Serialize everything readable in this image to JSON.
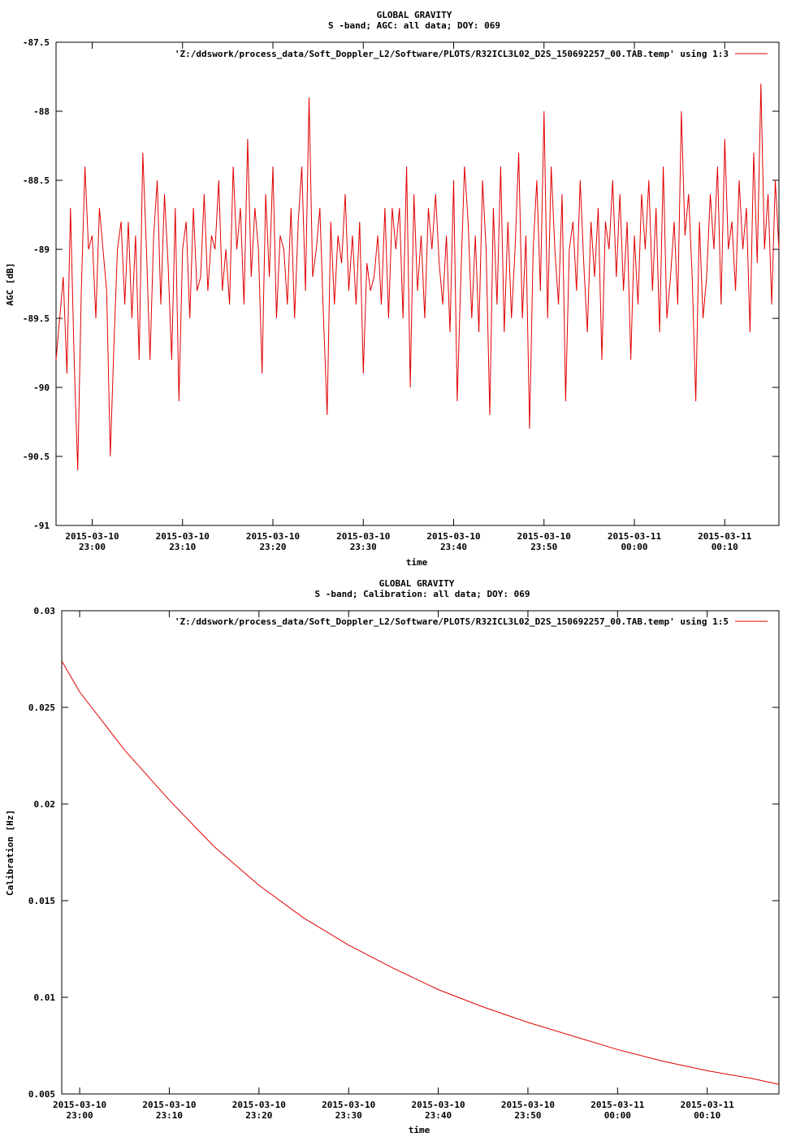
{
  "colors": {
    "series": "#e00000",
    "axis": "#000000",
    "background": "#ffffff"
  },
  "chart_data": [
    {
      "type": "line",
      "title": "GLOBAL GRAVITY",
      "subtitle": "S -band; AGC: all data; DOY: 069",
      "xlabel": "time",
      "ylabel": "AGC [dB]",
      "ylim": [
        -91,
        -87.5
      ],
      "yticks": [
        -87.5,
        -88,
        -88.5,
        -89,
        -89.5,
        -90,
        -90.5,
        -91
      ],
      "ytick_labels": [
        "-87.5",
        "-88",
        "-88.5",
        "-89",
        "-89.5",
        "-90",
        "-90.5",
        "-91"
      ],
      "xlim_minutes": [
        -4,
        76
      ],
      "xticks_minutes": [
        0,
        10,
        20,
        30,
        40,
        50,
        60,
        70
      ],
      "xtick_labels": [
        [
          "2015-03-10",
          "23:00"
        ],
        [
          "2015-03-10",
          "23:10"
        ],
        [
          "2015-03-10",
          "23:20"
        ],
        [
          "2015-03-10",
          "23:30"
        ],
        [
          "2015-03-10",
          "23:40"
        ],
        [
          "2015-03-10",
          "23:50"
        ],
        [
          "2015-03-11",
          "00:00"
        ],
        [
          "2015-03-11",
          "00:10"
        ]
      ],
      "grid": false,
      "legend_position": "top-right",
      "series": [
        {
          "name": "'Z:/ddswork/process_data/Soft_Doppler_L2/Software/PLOTS/R32ICL3L02_D2S_150692257_00.TAB.temp' using 1:3",
          "points": [
            [
              -4.0,
              -89.8
            ],
            [
              -3.6,
              -89.5
            ],
            [
              -3.2,
              -89.2
            ],
            [
              -2.8,
              -89.9
            ],
            [
              -2.4,
              -88.7
            ],
            [
              -2.0,
              -89.8
            ],
            [
              -1.6,
              -90.6
            ],
            [
              -1.2,
              -89.3
            ],
            [
              -0.8,
              -88.4
            ],
            [
              -0.4,
              -89.0
            ],
            [
              0.0,
              -88.9
            ],
            [
              0.4,
              -89.5
            ],
            [
              0.8,
              -88.7
            ],
            [
              1.2,
              -89.0
            ],
            [
              1.6,
              -89.3
            ],
            [
              2.0,
              -90.5
            ],
            [
              2.4,
              -89.7
            ],
            [
              2.8,
              -89.0
            ],
            [
              3.2,
              -88.8
            ],
            [
              3.6,
              -89.4
            ],
            [
              4.0,
              -88.8
            ],
            [
              4.4,
              -89.5
            ],
            [
              4.8,
              -88.9
            ],
            [
              5.2,
              -89.8
            ],
            [
              5.6,
              -88.3
            ],
            [
              6.0,
              -89.0
            ],
            [
              6.4,
              -89.8
            ],
            [
              6.8,
              -88.9
            ],
            [
              7.2,
              -88.5
            ],
            [
              7.6,
              -89.4
            ],
            [
              8.0,
              -88.6
            ],
            [
              8.4,
              -89.1
            ],
            [
              8.8,
              -89.8
            ],
            [
              9.2,
              -88.7
            ],
            [
              9.6,
              -90.1
            ],
            [
              10.0,
              -89.0
            ],
            [
              10.4,
              -88.8
            ],
            [
              10.8,
              -89.5
            ],
            [
              11.2,
              -88.7
            ],
            [
              11.6,
              -89.3
            ],
            [
              12.0,
              -89.2
            ],
            [
              12.4,
              -88.6
            ],
            [
              12.8,
              -89.3
            ],
            [
              13.2,
              -88.9
            ],
            [
              13.6,
              -89.0
            ],
            [
              14.0,
              -88.5
            ],
            [
              14.4,
              -89.3
            ],
            [
              14.8,
              -89.0
            ],
            [
              15.2,
              -89.4
            ],
            [
              15.6,
              -88.4
            ],
            [
              16.0,
              -89.0
            ],
            [
              16.4,
              -88.7
            ],
            [
              16.8,
              -89.4
            ],
            [
              17.2,
              -88.2
            ],
            [
              17.6,
              -89.2
            ],
            [
              18.0,
              -88.7
            ],
            [
              18.4,
              -89.0
            ],
            [
              18.8,
              -89.9
            ],
            [
              19.2,
              -88.6
            ],
            [
              19.6,
              -89.2
            ],
            [
              20.0,
              -88.4
            ],
            [
              20.4,
              -89.5
            ],
            [
              20.8,
              -88.9
            ],
            [
              21.2,
              -89.0
            ],
            [
              21.6,
              -89.4
            ],
            [
              22.0,
              -88.7
            ],
            [
              22.4,
              -89.5
            ],
            [
              22.8,
              -88.8
            ],
            [
              23.2,
              -88.4
            ],
            [
              23.6,
              -89.3
            ],
            [
              24.0,
              -87.9
            ],
            [
              24.4,
              -89.2
            ],
            [
              24.8,
              -89.0
            ],
            [
              25.2,
              -88.7
            ],
            [
              25.6,
              -89.5
            ],
            [
              26.0,
              -90.2
            ],
            [
              26.4,
              -88.8
            ],
            [
              26.8,
              -89.4
            ],
            [
              27.2,
              -88.9
            ],
            [
              27.6,
              -89.1
            ],
            [
              28.0,
              -88.6
            ],
            [
              28.4,
              -89.3
            ],
            [
              28.8,
              -88.9
            ],
            [
              29.2,
              -89.4
            ],
            [
              29.6,
              -88.8
            ],
            [
              30.0,
              -89.9
            ],
            [
              30.4,
              -89.1
            ],
            [
              30.8,
              -89.3
            ],
            [
              31.2,
              -89.2
            ],
            [
              31.6,
              -88.9
            ],
            [
              32.0,
              -89.4
            ],
            [
              32.4,
              -88.7
            ],
            [
              32.8,
              -89.5
            ],
            [
              33.2,
              -88.7
            ],
            [
              33.6,
              -89.0
            ],
            [
              34.0,
              -88.7
            ],
            [
              34.4,
              -89.5
            ],
            [
              34.8,
              -88.4
            ],
            [
              35.2,
              -90.0
            ],
            [
              35.6,
              -88.6
            ],
            [
              36.0,
              -89.3
            ],
            [
              36.4,
              -88.9
            ],
            [
              36.8,
              -89.5
            ],
            [
              37.2,
              -88.7
            ],
            [
              37.6,
              -89.0
            ],
            [
              38.0,
              -88.6
            ],
            [
              38.4,
              -89.1
            ],
            [
              38.8,
              -89.4
            ],
            [
              39.2,
              -88.9
            ],
            [
              39.6,
              -89.6
            ],
            [
              40.0,
              -88.5
            ],
            [
              40.4,
              -90.1
            ],
            [
              40.8,
              -89.2
            ],
            [
              41.2,
              -88.4
            ],
            [
              41.6,
              -88.8
            ],
            [
              42.0,
              -89.5
            ],
            [
              42.4,
              -88.9
            ],
            [
              42.8,
              -89.6
            ],
            [
              43.2,
              -88.5
            ],
            [
              43.6,
              -89.0
            ],
            [
              44.0,
              -90.2
            ],
            [
              44.4,
              -88.7
            ],
            [
              44.8,
              -89.4
            ],
            [
              45.2,
              -88.4
            ],
            [
              45.6,
              -89.6
            ],
            [
              46.0,
              -88.8
            ],
            [
              46.4,
              -89.5
            ],
            [
              46.8,
              -89.0
            ],
            [
              47.2,
              -88.3
            ],
            [
              47.6,
              -89.5
            ],
            [
              48.0,
              -88.9
            ],
            [
              48.4,
              -90.3
            ],
            [
              48.8,
              -89.0
            ],
            [
              49.2,
              -88.5
            ],
            [
              49.6,
              -89.3
            ],
            [
              50.0,
              -88.0
            ],
            [
              50.4,
              -89.5
            ],
            [
              50.8,
              -88.4
            ],
            [
              51.2,
              -89.0
            ],
            [
              51.6,
              -89.4
            ],
            [
              52.0,
              -88.6
            ],
            [
              52.4,
              -90.1
            ],
            [
              52.8,
              -89.0
            ],
            [
              53.2,
              -88.8
            ],
            [
              53.6,
              -89.3
            ],
            [
              54.0,
              -88.5
            ],
            [
              54.4,
              -89.1
            ],
            [
              54.8,
              -89.6
            ],
            [
              55.2,
              -88.8
            ],
            [
              55.6,
              -89.2
            ],
            [
              56.0,
              -88.7
            ],
            [
              56.4,
              -89.8
            ],
            [
              56.8,
              -88.8
            ],
            [
              57.2,
              -89.0
            ],
            [
              57.6,
              -88.5
            ],
            [
              58.0,
              -89.2
            ],
            [
              58.4,
              -88.6
            ],
            [
              58.8,
              -89.3
            ],
            [
              59.2,
              -88.8
            ],
            [
              59.6,
              -89.8
            ],
            [
              60.0,
              -88.9
            ],
            [
              60.4,
              -89.4
            ],
            [
              60.8,
              -88.6
            ],
            [
              61.2,
              -89.0
            ],
            [
              61.6,
              -88.5
            ],
            [
              62.0,
              -89.3
            ],
            [
              62.4,
              -88.7
            ],
            [
              62.8,
              -89.6
            ],
            [
              63.2,
              -88.4
            ],
            [
              63.6,
              -89.5
            ],
            [
              64.0,
              -89.2
            ],
            [
              64.4,
              -88.8
            ],
            [
              64.8,
              -89.4
            ],
            [
              65.2,
              -88.0
            ],
            [
              65.6,
              -88.9
            ],
            [
              66.0,
              -88.6
            ],
            [
              66.4,
              -89.2
            ],
            [
              66.8,
              -90.1
            ],
            [
              67.2,
              -88.8
            ],
            [
              67.6,
              -89.5
            ],
            [
              68.0,
              -89.2
            ],
            [
              68.4,
              -88.6
            ],
            [
              68.8,
              -89.0
            ],
            [
              69.2,
              -88.4
            ],
            [
              69.6,
              -89.4
            ],
            [
              70.0,
              -88.2
            ],
            [
              70.4,
              -89.0
            ],
            [
              70.8,
              -88.8
            ],
            [
              71.2,
              -89.3
            ],
            [
              71.6,
              -88.5
            ],
            [
              72.0,
              -89.0
            ],
            [
              72.4,
              -88.7
            ],
            [
              72.8,
              -89.6
            ],
            [
              73.2,
              -88.3
            ],
            [
              73.6,
              -89.1
            ],
            [
              74.0,
              -87.8
            ],
            [
              74.4,
              -89.0
            ],
            [
              74.8,
              -88.6
            ],
            [
              75.2,
              -89.4
            ],
            [
              75.6,
              -88.5
            ],
            [
              76.0,
              -89.0
            ]
          ]
        }
      ]
    },
    {
      "type": "line",
      "title": "GLOBAL GRAVITY",
      "subtitle": "S -band; Calibration: all data; DOY: 069",
      "xlabel": "time",
      "ylabel": "Calibration [Hz]",
      "ylim": [
        0.005,
        0.03
      ],
      "yticks": [
        0.03,
        0.025,
        0.02,
        0.015,
        0.01,
        0.005
      ],
      "ytick_labels": [
        "0.03",
        "0.025",
        "0.02",
        "0.015",
        "0.01",
        "0.005"
      ],
      "xlim_minutes": [
        -2,
        78
      ],
      "xticks_minutes": [
        0,
        10,
        20,
        30,
        40,
        50,
        60,
        70
      ],
      "xtick_labels": [
        [
          "2015-03-10",
          "23:00"
        ],
        [
          "2015-03-10",
          "23:10"
        ],
        [
          "2015-03-10",
          "23:20"
        ],
        [
          "2015-03-10",
          "23:30"
        ],
        [
          "2015-03-10",
          "23:40"
        ],
        [
          "2015-03-10",
          "23:50"
        ],
        [
          "2015-03-11",
          "00:00"
        ],
        [
          "2015-03-11",
          "00:10"
        ]
      ],
      "grid": false,
      "legend_position": "top-right",
      "series": [
        {
          "name": "'Z:/ddswork/process_data/Soft_Doppler_L2/Software/PLOTS/R32ICL3L02_D2S_150692257_00.TAB.temp' using 1:5",
          "points": [
            [
              -2,
              0.0274
            ],
            [
              0,
              0.0258
            ],
            [
              5,
              0.0228
            ],
            [
              10,
              0.0202
            ],
            [
              15,
              0.0178
            ],
            [
              20,
              0.0158
            ],
            [
              25,
              0.0141
            ],
            [
              30,
              0.0127
            ],
            [
              35,
              0.0115
            ],
            [
              40,
              0.0104
            ],
            [
              45,
              0.0095
            ],
            [
              50,
              0.0087
            ],
            [
              55,
              0.008
            ],
            [
              60,
              0.0073
            ],
            [
              65,
              0.0067
            ],
            [
              70,
              0.0062
            ],
            [
              75,
              0.0058
            ],
            [
              78,
              0.0055
            ]
          ]
        }
      ]
    }
  ]
}
